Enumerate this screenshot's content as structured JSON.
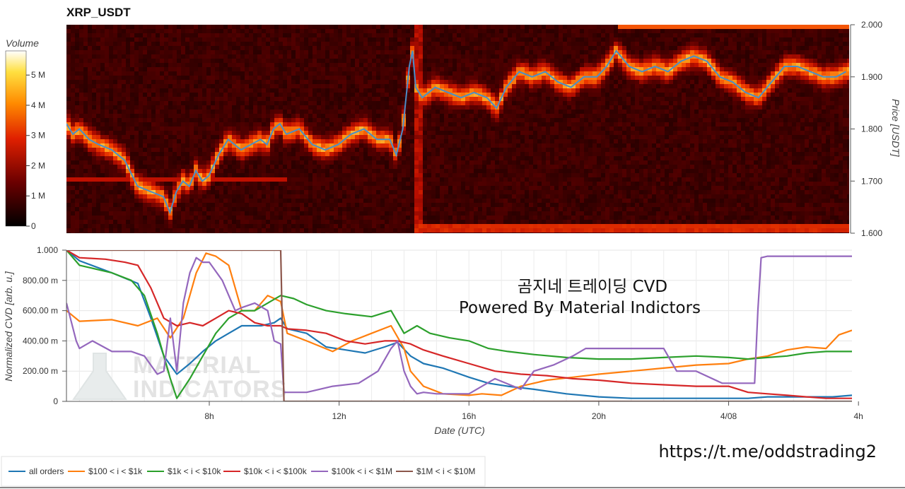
{
  "chart_data": [
    {
      "type": "heatmap",
      "title": "XRP_USDT",
      "ylabel": "Price [USDT]",
      "ylim": [
        1.6,
        2.0
      ],
      "y_ticks": [
        "1.600",
        "1.700",
        "1.800",
        "1.900",
        "2.000"
      ],
      "colorbar": {
        "label": "Volume",
        "ticks": [
          "0",
          "1 M",
          "2 M",
          "3 M",
          "4 M",
          "5 M"
        ],
        "range": [
          0,
          5.8
        ]
      },
      "price_series": {
        "x_hours": [
          3.6,
          3.8,
          4.0,
          4.3,
          4.6,
          5.0,
          5.4,
          5.8,
          6.2,
          6.6,
          6.8,
          7.0,
          7.2,
          7.4,
          7.6,
          7.8,
          8.0,
          8.3,
          8.6,
          9.0,
          9.3,
          9.6,
          9.8,
          10.0,
          10.2,
          10.4,
          10.8,
          11.2,
          11.6,
          12.0,
          12.4,
          12.8,
          13.2,
          13.6,
          13.8,
          14.0,
          14.1,
          14.2,
          14.3,
          14.4,
          14.6,
          15.0,
          15.4,
          15.8,
          16.2,
          16.6,
          16.9,
          17.2,
          17.6,
          18.0,
          18.4,
          18.8,
          19.2,
          19.6,
          20.0,
          20.3,
          20.6,
          21.0,
          21.4,
          21.8,
          22.2,
          22.6,
          23.0,
          23.4,
          23.8,
          24.2,
          24.6,
          25.0,
          25.4,
          25.8,
          26.2,
          26.6,
          27.0,
          27.4,
          27.7
        ],
        "values": [
          1.81,
          1.79,
          1.8,
          1.78,
          1.77,
          1.76,
          1.74,
          1.69,
          1.68,
          1.67,
          1.64,
          1.68,
          1.7,
          1.69,
          1.72,
          1.7,
          1.71,
          1.75,
          1.78,
          1.76,
          1.77,
          1.78,
          1.77,
          1.8,
          1.81,
          1.79,
          1.8,
          1.77,
          1.76,
          1.77,
          1.79,
          1.8,
          1.78,
          1.78,
          1.75,
          1.8,
          1.86,
          1.92,
          1.95,
          1.88,
          1.86,
          1.88,
          1.87,
          1.86,
          1.87,
          1.86,
          1.84,
          1.88,
          1.91,
          1.9,
          1.91,
          1.89,
          1.88,
          1.9,
          1.9,
          1.92,
          1.95,
          1.92,
          1.91,
          1.92,
          1.91,
          1.93,
          1.94,
          1.93,
          1.9,
          1.89,
          1.87,
          1.86,
          1.89,
          1.92,
          1.92,
          1.91,
          1.9,
          1.9,
          1.91
        ]
      }
    },
    {
      "type": "line",
      "xlabel": "Date (UTC)",
      "ylabel": "Normalized CVD [arb. u.]",
      "xlim": [
        3.6,
        27.8
      ],
      "ylim": [
        0,
        1
      ],
      "x_ticks": [
        {
          "value": 8,
          "label": "8h"
        },
        {
          "value": 12,
          "label": "12h"
        },
        {
          "value": 16,
          "label": "16h"
        },
        {
          "value": 20,
          "label": "20h"
        },
        {
          "value": 24,
          "label": "4/08"
        },
        {
          "value": 28,
          "label": "4h"
        }
      ],
      "y_ticks": [
        {
          "value": 0,
          "label": "0"
        },
        {
          "value": 0.2,
          "label": "200.00 m"
        },
        {
          "value": 0.4,
          "label": "400.00 m"
        },
        {
          "value": 0.6,
          "label": "600.00 m"
        },
        {
          "value": 0.8,
          "label": "800.00 m"
        },
        {
          "value": 1.0,
          "label": "1.000"
        }
      ],
      "legend_position": "bottom-left",
      "series": [
        {
          "name": "all orders",
          "color": "#1f77b4",
          "x": [
            3.6,
            4.0,
            5.0,
            5.8,
            6.2,
            6.6,
            7.0,
            7.4,
            7.8,
            8.2,
            8.6,
            9.0,
            9.6,
            10.0,
            10.2,
            10.4,
            11.0,
            11.6,
            12.2,
            12.8,
            13.4,
            13.8,
            14.2,
            14.6,
            15.2,
            16.0,
            16.6,
            17.2,
            18.0,
            19.0,
            20.0,
            21.0,
            22.0,
            23.0,
            23.6,
            24.0,
            24.6,
            25.2,
            26.0,
            26.6,
            27.2,
            27.8
          ],
          "values": [
            1.0,
            0.93,
            0.85,
            0.78,
            0.55,
            0.3,
            0.18,
            0.25,
            0.33,
            0.4,
            0.45,
            0.5,
            0.5,
            0.52,
            0.55,
            0.48,
            0.45,
            0.36,
            0.34,
            0.32,
            0.36,
            0.39,
            0.3,
            0.25,
            0.22,
            0.16,
            0.12,
            0.1,
            0.08,
            0.05,
            0.03,
            0.02,
            0.02,
            0.02,
            0.02,
            0.02,
            0.02,
            0.03,
            0.03,
            0.03,
            0.03,
            0.04
          ]
        },
        {
          "name": "$100 < i < $1k",
          "color": "#ff7f0e",
          "x": [
            3.6,
            4.0,
            5.0,
            5.8,
            6.4,
            6.8,
            7.2,
            7.6,
            7.9,
            8.2,
            8.6,
            9.0,
            9.4,
            9.8,
            10.2,
            10.4,
            11.0,
            11.8,
            12.4,
            13.0,
            13.6,
            14.0,
            14.2,
            14.6,
            15.2,
            16.0,
            16.4,
            17.0,
            17.6,
            18.4,
            19.2,
            20.0,
            21.0,
            22.0,
            23.0,
            24.0,
            24.6,
            25.2,
            25.8,
            26.4,
            27.0,
            27.4,
            27.8
          ],
          "values": [
            0.6,
            0.53,
            0.54,
            0.5,
            0.55,
            0.42,
            0.55,
            0.85,
            0.98,
            0.96,
            0.9,
            0.6,
            0.6,
            0.7,
            0.66,
            0.45,
            0.4,
            0.33,
            0.4,
            0.45,
            0.5,
            0.35,
            0.2,
            0.1,
            0.05,
            0.04,
            0.05,
            0.04,
            0.1,
            0.14,
            0.16,
            0.18,
            0.2,
            0.22,
            0.24,
            0.25,
            0.28,
            0.3,
            0.34,
            0.36,
            0.35,
            0.44,
            0.47
          ]
        },
        {
          "name": "$1k < i < $10k",
          "color": "#2ca02c",
          "x": [
            3.6,
            4.0,
            5.0,
            5.6,
            6.0,
            6.4,
            6.8,
            7.0,
            7.4,
            7.8,
            8.2,
            8.6,
            9.0,
            9.4,
            9.8,
            10.2,
            10.6,
            11.0,
            11.6,
            12.2,
            13.0,
            13.6,
            14.0,
            14.4,
            14.8,
            15.4,
            16.0,
            16.6,
            17.2,
            18.0,
            19.0,
            20.0,
            21.0,
            22.0,
            23.0,
            24.0,
            24.6,
            25.2,
            25.8,
            26.4,
            27.0,
            27.8
          ],
          "values": [
            1.0,
            0.9,
            0.85,
            0.8,
            0.7,
            0.45,
            0.15,
            0.02,
            0.15,
            0.3,
            0.45,
            0.55,
            0.6,
            0.6,
            0.65,
            0.7,
            0.68,
            0.64,
            0.6,
            0.58,
            0.56,
            0.6,
            0.45,
            0.5,
            0.45,
            0.42,
            0.4,
            0.35,
            0.33,
            0.31,
            0.29,
            0.28,
            0.28,
            0.29,
            0.3,
            0.29,
            0.28,
            0.29,
            0.3,
            0.32,
            0.33,
            0.33
          ]
        },
        {
          "name": "$10k < i < $100k",
          "color": "#d62728",
          "x": [
            3.6,
            4.0,
            4.8,
            5.4,
            5.8,
            6.2,
            6.6,
            7.0,
            7.4,
            7.8,
            8.2,
            8.6,
            9.0,
            9.4,
            9.8,
            10.2,
            10.4,
            11.0,
            11.6,
            12.2,
            12.8,
            13.4,
            13.8,
            14.2,
            14.6,
            15.2,
            16.0,
            16.8,
            17.6,
            18.4,
            19.2,
            20.0,
            21.0,
            22.0,
            23.0,
            24.0,
            24.6,
            25.2,
            25.8,
            26.4,
            27.0,
            27.8
          ],
          "values": [
            1.0,
            0.95,
            0.94,
            0.92,
            0.9,
            0.75,
            0.55,
            0.5,
            0.52,
            0.5,
            0.55,
            0.6,
            0.58,
            0.52,
            0.5,
            0.5,
            0.48,
            0.47,
            0.45,
            0.4,
            0.38,
            0.4,
            0.4,
            0.38,
            0.34,
            0.3,
            0.25,
            0.2,
            0.18,
            0.17,
            0.15,
            0.14,
            0.12,
            0.11,
            0.1,
            0.1,
            0.06,
            0.05,
            0.04,
            0.03,
            0.02,
            0.02
          ]
        },
        {
          "name": "$100k < i < $1M",
          "color": "#9467bd",
          "x": [
            3.6,
            3.9,
            4.0,
            4.4,
            5.0,
            5.6,
            6.0,
            6.4,
            6.6,
            6.8,
            7.0,
            7.2,
            7.4,
            7.6,
            7.8,
            8.0,
            8.4,
            8.8,
            9.0,
            9.4,
            9.8,
            10.0,
            10.2,
            10.3,
            11.0,
            11.8,
            12.6,
            13.2,
            13.6,
            13.8,
            14.0,
            14.2,
            14.4,
            14.6,
            15.0,
            16.0,
            16.8,
            17.6,
            18.0,
            18.6,
            19.2,
            19.6,
            20.0,
            20.8,
            21.6,
            22.0,
            22.4,
            23.0,
            23.8,
            24.4,
            24.8,
            24.9,
            25.0,
            25.2,
            25.6,
            26.4,
            27.0,
            27.8
          ],
          "values": [
            0.65,
            0.4,
            0.35,
            0.4,
            0.33,
            0.33,
            0.3,
            0.18,
            0.2,
            0.55,
            0.2,
            0.65,
            0.85,
            0.95,
            0.92,
            0.92,
            0.8,
            0.6,
            0.62,
            0.65,
            0.6,
            0.4,
            0.38,
            0.06,
            0.06,
            0.1,
            0.12,
            0.2,
            0.35,
            0.4,
            0.2,
            0.1,
            0.05,
            0.06,
            0.05,
            0.05,
            0.15,
            0.08,
            0.2,
            0.24,
            0.3,
            0.35,
            0.35,
            0.35,
            0.35,
            0.35,
            0.2,
            0.2,
            0.12,
            0.12,
            0.12,
            0.6,
            0.95,
            0.96,
            0.96,
            0.96,
            0.96,
            0.96
          ]
        },
        {
          "name": "$1M < i < $10M",
          "color": "#8c564b",
          "x": [
            3.6,
            10.2,
            10.3,
            10.6,
            12.0,
            14.0,
            16.0,
            18.0,
            20.0,
            22.0,
            24.0,
            26.0,
            27.8
          ],
          "values": [
            1.0,
            1.0,
            0.0,
            0.0,
            0.0,
            0.0,
            0.0,
            0.0,
            0.0,
            0.0,
            0.0,
            0.0,
            0.0
          ]
        }
      ]
    }
  ],
  "overlay": {
    "line1": "곰지네 트레이딩 CVD",
    "line2": "Powered By Material Indictors"
  },
  "watermark": {
    "line1": "MATERIAL",
    "line2": "INDICATORS"
  },
  "telegram_link": "https://t.me/oddstrading2"
}
